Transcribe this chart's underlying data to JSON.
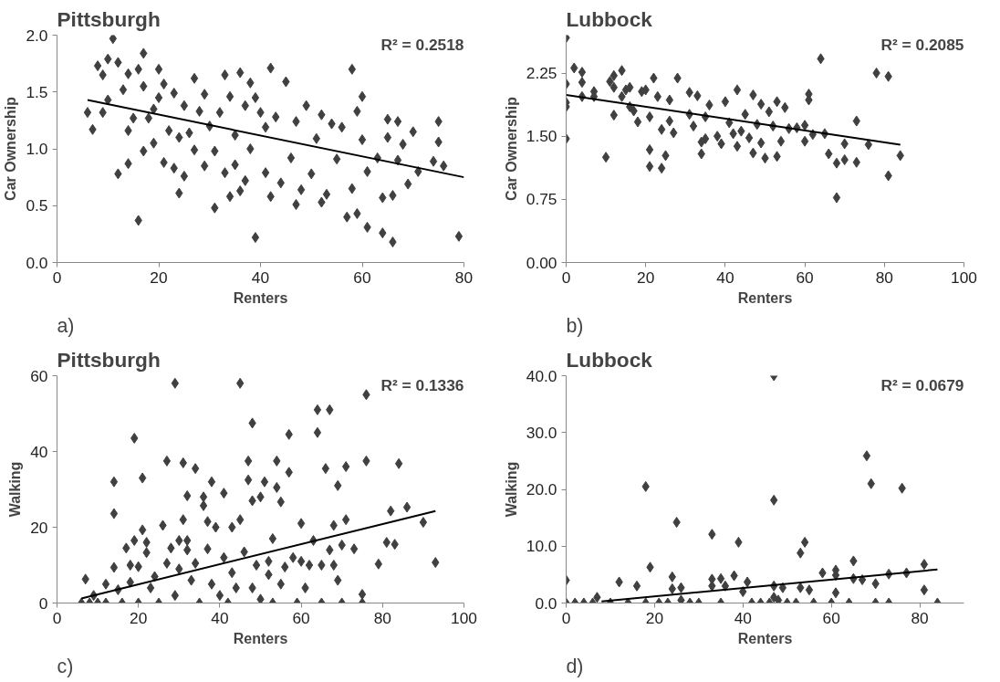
{
  "chart_data": [
    {
      "type": "scatter",
      "title": "Pittsburgh",
      "xlabel": "Renters",
      "ylabel": "Car Ownership",
      "annotations": [
        "R² = 0.2518",
        "a)"
      ],
      "xlim": [
        0,
        80
      ],
      "xticks": [
        0,
        20,
        40,
        60,
        80
      ],
      "ylim": [
        0,
        2.0
      ],
      "yticks": [
        {
          "value": 0,
          "label": "0.0"
        },
        {
          "value": 0.5,
          "label": "0.5"
        },
        {
          "value": 1.0,
          "label": "1.0"
        },
        {
          "value": 1.5,
          "label": "1.5"
        },
        {
          "value": 2.0,
          "label": "2.0"
        }
      ],
      "grid": false,
      "marker": "diamond",
      "line_style": "solid",
      "series": [
        {
          "color": "#404040",
          "x": [
            6,
            7,
            8,
            9,
            9,
            10,
            10,
            11,
            12,
            12,
            13,
            14,
            14,
            14,
            15,
            16,
            16,
            17,
            17,
            17,
            18,
            19,
            19,
            20,
            20,
            21,
            21,
            22,
            23,
            23,
            24,
            24,
            25,
            25,
            26,
            27,
            27,
            28,
            29,
            29,
            30,
            31,
            31,
            32,
            33,
            33,
            34,
            34,
            35,
            35,
            36,
            36,
            37,
            37,
            38,
            38,
            39,
            39,
            40,
            41,
            41,
            42,
            42,
            43,
            44,
            45,
            46,
            47,
            47,
            48,
            49,
            50,
            51,
            52,
            52,
            53,
            54,
            55,
            56,
            57,
            58,
            58,
            59,
            59,
            60,
            60,
            61,
            61,
            63,
            64,
            64,
            65,
            65,
            66,
            66,
            67,
            67,
            68,
            69,
            70,
            71,
            74,
            75,
            75,
            76,
            79
          ],
          "values": [
            1.32,
            1.17,
            1.73,
            1.65,
            1.32,
            1.79,
            1.43,
            1.97,
            1.76,
            0.78,
            1.52,
            1.66,
            1.16,
            0.87,
            1.27,
            0.37,
            1.7,
            1.84,
            1.55,
            0.98,
            1.27,
            1.05,
            1.35,
            1.7,
            1.45,
            1.57,
            0.88,
            1.16,
            0.83,
            1.49,
            1.1,
            0.61,
            1.38,
            0.76,
            1.14,
            1.62,
            0.99,
            1.33,
            1.48,
            0.85,
            1.2,
            0.98,
            0.48,
            1.32,
            1.65,
            0.79,
            1.46,
            0.58,
            0.86,
            1.12,
            0.63,
            1.67,
            1.38,
            0.72,
            1.58,
            1.0,
            1.45,
            0.22,
            1.32,
            1.19,
            0.79,
            1.71,
            0.58,
            1.28,
            0.7,
            1.59,
            0.92,
            0.51,
            1.24,
            0.64,
            1.38,
            0.78,
            1.09,
            0.53,
            1.3,
            0.6,
            1.22,
            0.91,
            1.19,
            0.4,
            1.7,
            0.65,
            1.33,
            0.43,
            1.08,
            1.46,
            0.31,
            0.8,
            0.92,
            0.26,
            0.57,
            1.26,
            1.1,
            0.18,
            0.59,
            0.9,
            1.24,
            1.04,
            0.69,
            1.15,
            0.8,
            0.89,
            1.24,
            1.06,
            0.85,
            0.23
          ]
        },
        {
          "type": "line",
          "marker": "none",
          "color": "#000000",
          "x": [
            6,
            80
          ],
          "values": [
            1.43,
            0.75
          ]
        }
      ]
    },
    {
      "type": "scatter",
      "title": "Lubbock",
      "xlabel": "Renters",
      "ylabel": "Car Ownership",
      "annotations": [
        "R² = 0.2085",
        "b)"
      ],
      "xlim": [
        0,
        100
      ],
      "xticks": [
        0,
        20,
        40,
        60,
        80,
        100
      ],
      "ylim": [
        0,
        2.7
      ],
      "yticks": [
        {
          "value": 0,
          "label": "0.00"
        },
        {
          "value": 0.75,
          "label": "0.75"
        },
        {
          "value": 1.5,
          "label": "1.50"
        },
        {
          "value": 2.25,
          "label": "2.25"
        }
      ],
      "grid": false,
      "marker": "diamond",
      "line_style": "solid",
      "series": [
        {
          "color": "#404040",
          "x": [
            0,
            0,
            0,
            0,
            0,
            2,
            4,
            4,
            4,
            7,
            7,
            10,
            11,
            12,
            12,
            12,
            14,
            14,
            15,
            16,
            16,
            17,
            18,
            19,
            20,
            21,
            21,
            21,
            22,
            23,
            24,
            24,
            25,
            26,
            26,
            27,
            28,
            31,
            31,
            32,
            33,
            34,
            34,
            35,
            35,
            36,
            38,
            39,
            40,
            41,
            42,
            43,
            43,
            44,
            45,
            46,
            47,
            47,
            48,
            49,
            49,
            50,
            51,
            52,
            53,
            53,
            54,
            55,
            56,
            58,
            60,
            60,
            61,
            61,
            62,
            64,
            65,
            66,
            68,
            68,
            70,
            70,
            73,
            73,
            76,
            78,
            81,
            81,
            84
          ],
          "values": [
            2.67,
            2.12,
            1.9,
            1.85,
            1.47,
            2.31,
            2.26,
            2.14,
            1.97,
            2.03,
            1.97,
            1.25,
            2.15,
            2.22,
            2.08,
            1.75,
            2.28,
            1.97,
            2.05,
            1.85,
            2.08,
            1.8,
            1.67,
            2.03,
            2.05,
            1.73,
            1.34,
            1.14,
            2.19,
            1.97,
            1.58,
            1.12,
            1.27,
            1.93,
            1.68,
            1.54,
            2.19,
            1.76,
            2.02,
            1.62,
            1.98,
            1.43,
            1.29,
            1.47,
            1.73,
            1.87,
            1.5,
            1.41,
            1.91,
            1.66,
            1.53,
            2.05,
            1.38,
            1.56,
            1.76,
            1.48,
            1.99,
            1.3,
            1.64,
            1.88,
            1.42,
            1.24,
            1.79,
            1.62,
            1.91,
            1.26,
            1.44,
            1.84,
            1.59,
            1.6,
            1.44,
            1.63,
            1.93,
            2.0,
            1.52,
            2.42,
            1.53,
            1.29,
            1.18,
            0.77,
            1.41,
            1.22,
            1.68,
            1.19,
            1.4,
            2.25,
            2.21,
            1.03,
            1.27
          ]
        },
        {
          "type": "line",
          "marker": "none",
          "color": "#000000",
          "x": [
            0,
            84
          ],
          "values": [
            1.99,
            1.4
          ]
        }
      ]
    },
    {
      "type": "scatter",
      "title": "Pittsburgh",
      "xlabel": "Renters",
      "ylabel": "Walking",
      "annotations": [
        "R² = 0.1336",
        "c)"
      ],
      "xlim": [
        0,
        100
      ],
      "xticks": [
        0,
        20,
        40,
        60,
        80,
        100
      ],
      "ylim": [
        0,
        60
      ],
      "yticks": [
        0,
        20,
        40,
        60
      ],
      "grid": false,
      "marker": "diamond",
      "line_style": "solid",
      "series": [
        {
          "color": "#404040",
          "x": [
            6,
            7,
            8,
            9,
            10,
            12,
            12,
            14,
            14,
            14,
            15,
            16,
            17,
            18,
            18,
            19,
            19,
            20,
            20,
            21,
            21,
            22,
            22,
            23,
            24,
            25,
            26,
            27,
            27,
            28,
            29,
            29,
            30,
            30,
            31,
            31,
            32,
            32,
            32,
            33,
            34,
            34,
            35,
            36,
            36,
            37,
            37,
            38,
            38,
            39,
            40,
            41,
            41,
            42,
            43,
            43,
            44,
            45,
            45,
            46,
            47,
            47,
            48,
            48,
            48,
            49,
            50,
            50,
            51,
            52,
            52,
            53,
            53,
            54,
            54,
            55,
            55,
            56,
            57,
            57,
            58,
            59,
            60,
            60,
            61,
            62,
            63,
            64,
            64,
            65,
            65,
            66,
            67,
            67,
            68,
            68,
            69,
            69,
            70,
            70,
            71,
            71,
            73,
            75,
            75,
            76,
            76,
            79,
            81,
            82,
            83,
            84,
            86,
            90,
            93
          ],
          "values": [
            0,
            6.3,
            0,
            2,
            0,
            5,
            0,
            9.4,
            32,
            23.6,
            3.5,
            0,
            14.5,
            10,
            5.5,
            43.5,
            16.5,
            9.6,
            0,
            33,
            19.3,
            16,
            13.3,
            4,
            7,
            0,
            20.5,
            37.5,
            10.5,
            14.5,
            58,
            2,
            16.5,
            9,
            22,
            37,
            28.3,
            16.5,
            14,
            6,
            35.5,
            10.5,
            0,
            25.7,
            28,
            21.5,
            14.3,
            32,
            5,
            20,
            2,
            29,
            12,
            0,
            20,
            8,
            4,
            58,
            22,
            13.5,
            37.5,
            32.5,
            27,
            47.5,
            4,
            10,
            28,
            1,
            32,
            7.5,
            11,
            17,
            0,
            30.5,
            37.5,
            26.7,
            5,
            9.5,
            34.5,
            44.5,
            12,
            0,
            21,
            11,
            4,
            10,
            16.5,
            45,
            51,
            10,
            0,
            35.5,
            51,
            14,
            20.5,
            10,
            31,
            6,
            15.3,
            0,
            22,
            36,
            14.3,
            0,
            2.3,
            37.5,
            55,
            10.3,
            16,
            24.3,
            15.5,
            36.8,
            25.3,
            21.3,
            10.7
          ]
        },
        {
          "type": "line",
          "marker": "none",
          "color": "#000000",
          "x": [
            6,
            93
          ],
          "values": [
            1.2,
            24.3
          ]
        }
      ]
    },
    {
      "type": "scatter",
      "title": "Lubbock",
      "xlabel": "Renters",
      "ylabel": "Walking",
      "annotations": [
        "R² = 0.0679",
        "d)"
      ],
      "xlim": [
        0,
        90
      ],
      "xticks": [
        0,
        20,
        40,
        60,
        80
      ],
      "ylim": [
        0,
        40
      ],
      "yticks": [
        {
          "value": 0,
          "label": "0.0"
        },
        {
          "value": 10,
          "label": "10.0"
        },
        {
          "value": 20,
          "label": "20.0"
        },
        {
          "value": 30,
          "label": "30.0"
        },
        {
          "value": 40,
          "label": "40.0"
        }
      ],
      "grid": false,
      "marker": "diamond",
      "line_style": "solid",
      "series": [
        {
          "color": "#404040",
          "x": [
            0,
            0,
            2,
            4,
            6,
            7,
            10,
            12,
            14,
            16,
            18,
            18,
            19,
            21,
            23,
            24,
            24,
            25,
            26,
            26,
            28,
            30,
            33,
            33,
            33,
            35,
            35,
            36,
            38,
            39,
            40,
            41,
            42,
            44,
            46,
            47,
            47,
            47,
            47,
            48,
            49,
            50,
            52,
            53,
            53,
            54,
            55,
            56,
            58,
            60,
            61,
            61,
            61,
            64,
            65,
            65,
            67,
            68,
            69,
            70,
            70,
            73,
            73,
            76,
            77,
            81,
            81,
            84
          ],
          "values": [
            4,
            0,
            0,
            0,
            0,
            1,
            0,
            3.7,
            0,
            3,
            20.5,
            0,
            6.3,
            0,
            0,
            2.5,
            4.6,
            14.2,
            2.7,
            0.5,
            0,
            0,
            12.1,
            3,
            4.2,
            4.3,
            0,
            3,
            4.8,
            10.7,
            2,
            3.7,
            0,
            0,
            0,
            40,
            18.1,
            3,
            1,
            0.5,
            2.7,
            0,
            0,
            8.8,
            2.7,
            10.7,
            2.3,
            0,
            5.3,
            0,
            5.8,
            1.8,
            4.9,
            0,
            4.3,
            7.4,
            4.1,
            25.9,
            21,
            0,
            3.4,
            0,
            5.1,
            20.2,
            5.3,
            6.8,
            2.3,
            0
          ]
        },
        {
          "type": "line",
          "marker": "none",
          "color": "#000000",
          "x": [
            8,
            84
          ],
          "values": [
            0.3,
            5.9
          ]
        }
      ]
    }
  ]
}
